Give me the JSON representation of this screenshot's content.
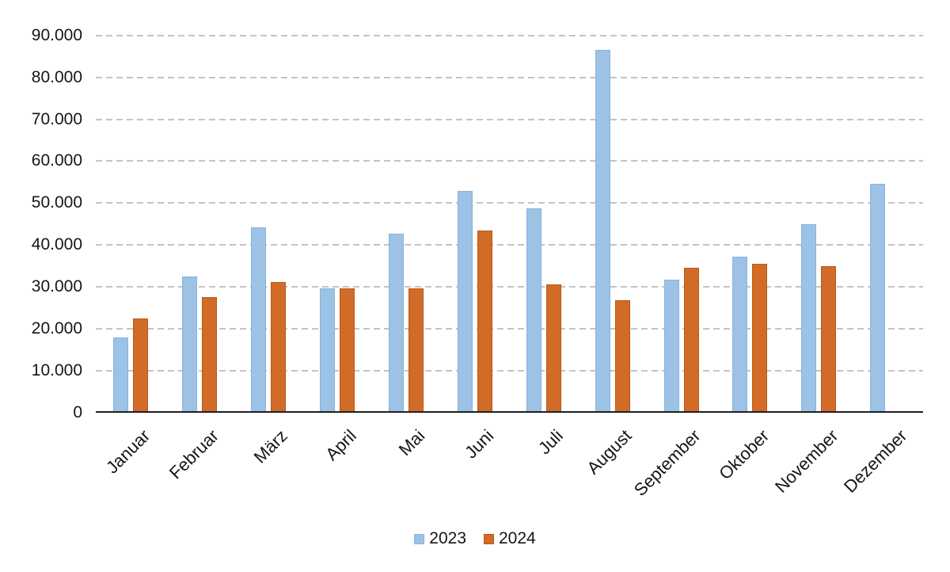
{
  "chart_data": {
    "type": "bar",
    "title": "",
    "categories": [
      "Januar",
      "Februar",
      "März",
      "April",
      "Mai",
      "Juni",
      "Juli",
      "August",
      "September",
      "Oktober",
      "November",
      "Dezember"
    ],
    "series": [
      {
        "name": "2023",
        "color": "#9cc2e5",
        "border_color": "#8ab2d9",
        "values": [
          18000,
          32500,
          44200,
          29600,
          42800,
          52900,
          48800,
          86500,
          31700,
          37200,
          45000,
          54700
        ]
      },
      {
        "name": "2024",
        "color": "#d26b28",
        "border_color": "#b85a15",
        "values": [
          22500,
          27500,
          31200,
          29700,
          29700,
          43400,
          30600,
          26900,
          34500,
          35500,
          35000,
          null
        ]
      }
    ],
    "y_axis": {
      "min": 0,
      "max": 90000,
      "step": 10000,
      "tick_labels": [
        "0",
        "10.000",
        "20.000",
        "30.000",
        "40.000",
        "50.000",
        "60.000",
        "70.000",
        "80.000",
        "90.000"
      ]
    },
    "x_label_rotation_deg": -45,
    "grid": "horizontal-dashed",
    "gridline_color": "#c4c4c4",
    "axis_line_color": "#1f1f1f",
    "legend_position": "bottom-center",
    "legend_labels": [
      "2023",
      "2024"
    ]
  }
}
